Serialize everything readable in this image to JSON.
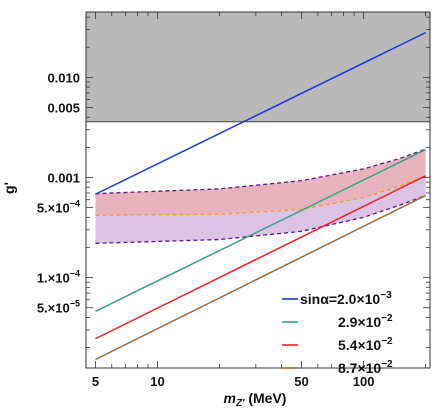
{
  "chart_data": {
    "type": "line",
    "xlabel": "m",
    "xlabel_sub": "Z'",
    "xlabel_unit": " (MeV)",
    "ylabel": "g'",
    "xscale": "log",
    "yscale": "log",
    "xlim": [
      4.5,
      210
    ],
    "ylim": [
      1.25e-05,
      0.045
    ],
    "x_ticks": [
      {
        "value": 5,
        "label": "5"
      },
      {
        "value": 10,
        "label": "10"
      },
      {
        "value": 50,
        "label": "50"
      },
      {
        "value": 100,
        "label": "100"
      }
    ],
    "y_ticks": [
      {
        "value": 5e-05,
        "label": "5.×10",
        "exp": "−5"
      },
      {
        "value": 0.0001,
        "label": "1.×10",
        "exp": "−4"
      },
      {
        "value": 0.0005,
        "label": "5.×10",
        "exp": "−4"
      },
      {
        "value": 0.001,
        "label": "0.001",
        "exp": ""
      },
      {
        "value": 0.005,
        "label": "0.005",
        "exp": ""
      },
      {
        "value": 0.01,
        "label": "0.010",
        "exp": ""
      }
    ],
    "excluded_region": {
      "y_min": 0.0036,
      "color": "#b9b9b9"
    },
    "series": [
      {
        "name": "sinα=2.0×10",
        "exp": "−3",
        "color": "#2233dd",
        "x": [
          5,
          200
        ],
        "y": [
          0.00068,
          0.028
        ]
      },
      {
        "name": "2.9×10",
        "exp": "−2",
        "color": "#3aa08a",
        "x": [
          5,
          200
        ],
        "y": [
          4.6e-05,
          0.0019
        ]
      },
      {
        "name": "5.4×10",
        "exp": "−2",
        "color": "#ee2222",
        "x": [
          5,
          200
        ],
        "y": [
          2.45e-05,
          0.00104
        ]
      },
      {
        "name": "8.7×10",
        "exp": "−2",
        "color": "#a06a38",
        "x": [
          5,
          200
        ],
        "y": [
          1.52e-05,
          0.00066
        ]
      }
    ],
    "band": {
      "x": [
        5,
        20,
        50,
        100,
        150,
        200
      ],
      "upper": [
        0.00069,
        0.00077,
        0.00093,
        0.00122,
        0.00155,
        0.00192
      ],
      "central": [
        0.00042,
        0.00043,
        0.00048,
        0.00063,
        0.00082,
        0.00104
      ],
      "lower": [
        0.00022,
        0.00024,
        0.00029,
        0.0004,
        0.00053,
        0.00066
      ],
      "upper_fill": "#e8b3bd",
      "lower_fill": "#dcc2e4",
      "boundary_color": "#5a1a8a",
      "central_color": "#f39a2a"
    },
    "legend": {
      "position": "bottom-right"
    }
  }
}
